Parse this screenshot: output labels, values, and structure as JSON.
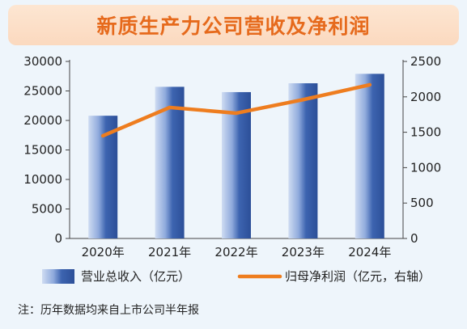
{
  "chart_data": {
    "type": "bar",
    "title": "新质生产力公司营收及净利润",
    "categories": [
      "2020年",
      "2021年",
      "2022年",
      "2023年",
      "2024年"
    ],
    "series": [
      {
        "name": "营业总收入（亿元）",
        "type": "bar",
        "axis": "left",
        "values": [
          20800,
          25700,
          24800,
          26300,
          27900
        ],
        "color": "#3f66b3"
      },
      {
        "name": "归母净利润（亿元，右轴）",
        "type": "line",
        "axis": "right",
        "values": [
          1450,
          1850,
          1770,
          1960,
          2170
        ],
        "color": "#ee7d1f"
      }
    ],
    "y_left": {
      "range": [
        0,
        30000
      ],
      "ticks": [
        "0",
        "5000",
        "10000",
        "15000",
        "20000",
        "25000",
        "30000"
      ]
    },
    "y_right": {
      "range": [
        0,
        2500
      ],
      "ticks": [
        "0",
        "500",
        "1000",
        "1500",
        "2000",
        "2500"
      ]
    },
    "note": "注：历年数据均来自上市公司半年报",
    "legend_position": "bottom"
  }
}
